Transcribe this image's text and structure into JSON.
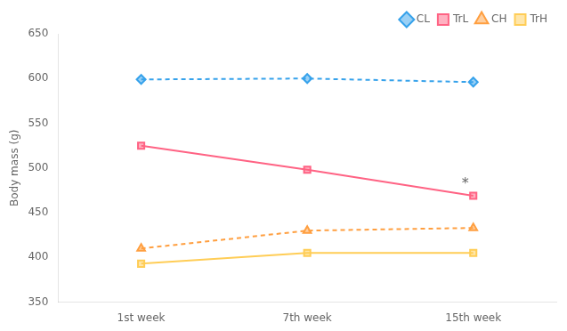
{
  "chart_data": {
    "type": "line",
    "categories": [
      "1st week",
      "7th week",
      "15th week"
    ],
    "series": [
      {
        "name": "CL",
        "values": [
          599,
          600,
          596
        ],
        "marker": "diamond",
        "line_style": "dashed"
      },
      {
        "name": "TrL",
        "values": [
          525,
          498,
          469
        ],
        "marker": "square",
        "line_style": "solid"
      },
      {
        "name": "CH",
        "values": [
          410,
          430,
          433
        ],
        "marker": "triangle",
        "line_style": "dashed"
      },
      {
        "name": "TrH",
        "values": [
          393,
          405,
          405
        ],
        "marker": "square",
        "line_style": "solid"
      }
    ],
    "y_label": "Body mass (g)",
    "ylim": [
      350,
      650
    ],
    "yticks": [
      350,
      400,
      450,
      500,
      550,
      600,
      650
    ],
    "annotations": [
      {
        "text": "*",
        "category": "15th week",
        "y": 482
      }
    ],
    "legend": "upper right",
    "grid": false
  }
}
